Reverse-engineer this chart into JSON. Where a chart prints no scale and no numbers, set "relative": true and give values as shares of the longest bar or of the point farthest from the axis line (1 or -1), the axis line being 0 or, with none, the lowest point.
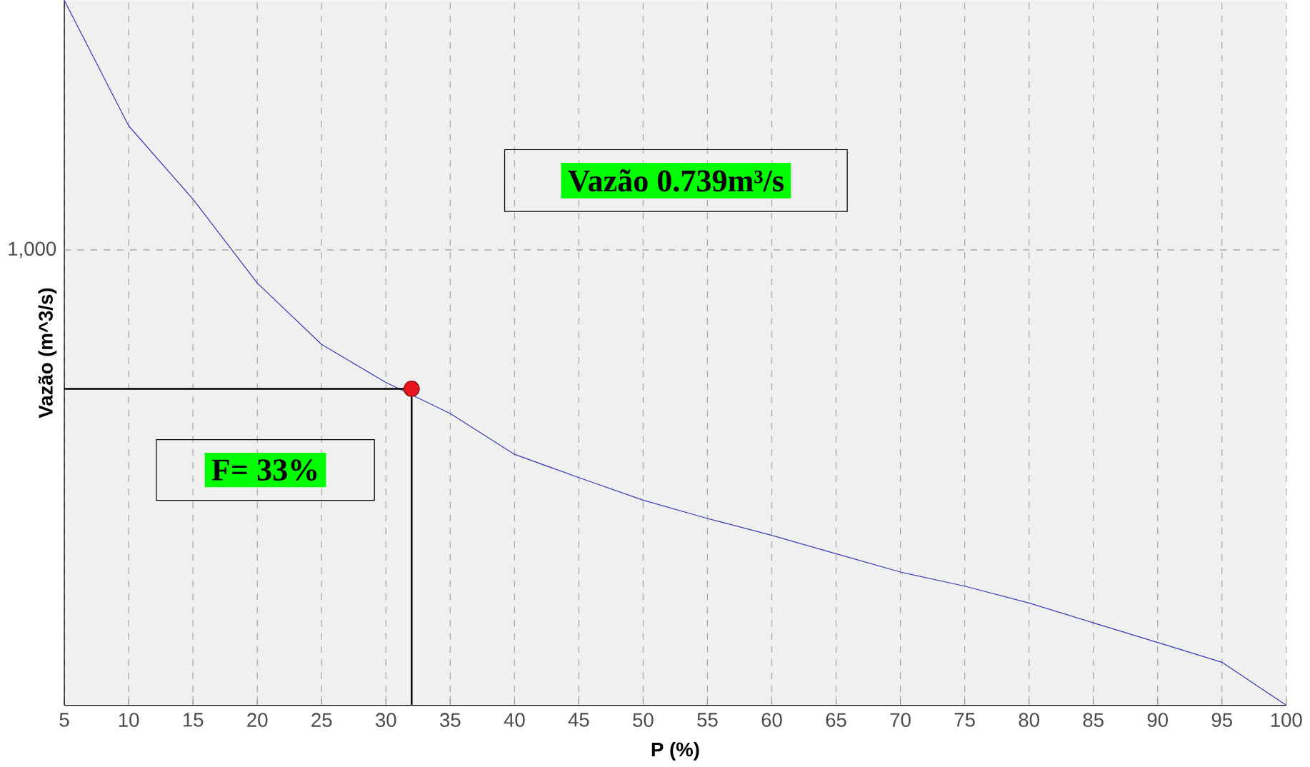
{
  "chart_data": {
    "type": "line",
    "xlabel": "P (%)",
    "ylabel": "Vazão (m^3/s)",
    "relative": true,
    "grid": "x",
    "line_style": "solid",
    "xlim": [
      5,
      100
    ],
    "xticks": [
      5,
      10,
      15,
      20,
      25,
      30,
      35,
      40,
      45,
      50,
      55,
      60,
      65,
      70,
      75,
      80,
      85,
      90,
      95,
      100
    ],
    "series": [
      {
        "color": "#3a3ab8",
        "marker": "none",
        "x": [
          5,
          10,
          15,
          20,
          25,
          30,
          35,
          40,
          45,
          50,
          55,
          60,
          65,
          70,
          75,
          80,
          85,
          90,
          95,
          100
        ],
        "values": [
          1.0,
          0.822,
          0.718,
          0.599,
          0.512,
          0.458,
          0.414,
          0.356,
          0.323,
          0.291,
          0.265,
          0.241,
          0.215,
          0.189,
          0.169,
          0.145,
          0.117,
          0.089,
          0.061,
          0.0
        ]
      },
      {
        "type": "scatter",
        "color": "#e8141e",
        "marker": "circle",
        "x": [
          32
        ],
        "values": [
          0.449
        ]
      }
    ],
    "ref_lines": [
      {
        "axis": "y",
        "value": 0.646,
        "line_style": "dashed",
        "color": "#999999"
      }
    ],
    "annotations": [
      "Vazão 0.739m³/s",
      "F= 33%",
      "1,000"
    ]
  }
}
